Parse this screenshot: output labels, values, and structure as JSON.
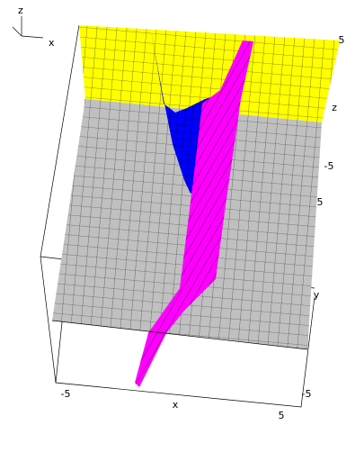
{
  "chart_data": {
    "type": "surface3d",
    "xlabel": "x",
    "ylabel": "y",
    "zlabel": "z",
    "xlim": [
      -5,
      5
    ],
    "xticks": [
      -5,
      5
    ],
    "ylim": [
      -5,
      5
    ],
    "yticks": [
      -5,
      5
    ],
    "zlim": [
      -5,
      5
    ],
    "zticks": [
      -5,
      5
    ]
  }
}
